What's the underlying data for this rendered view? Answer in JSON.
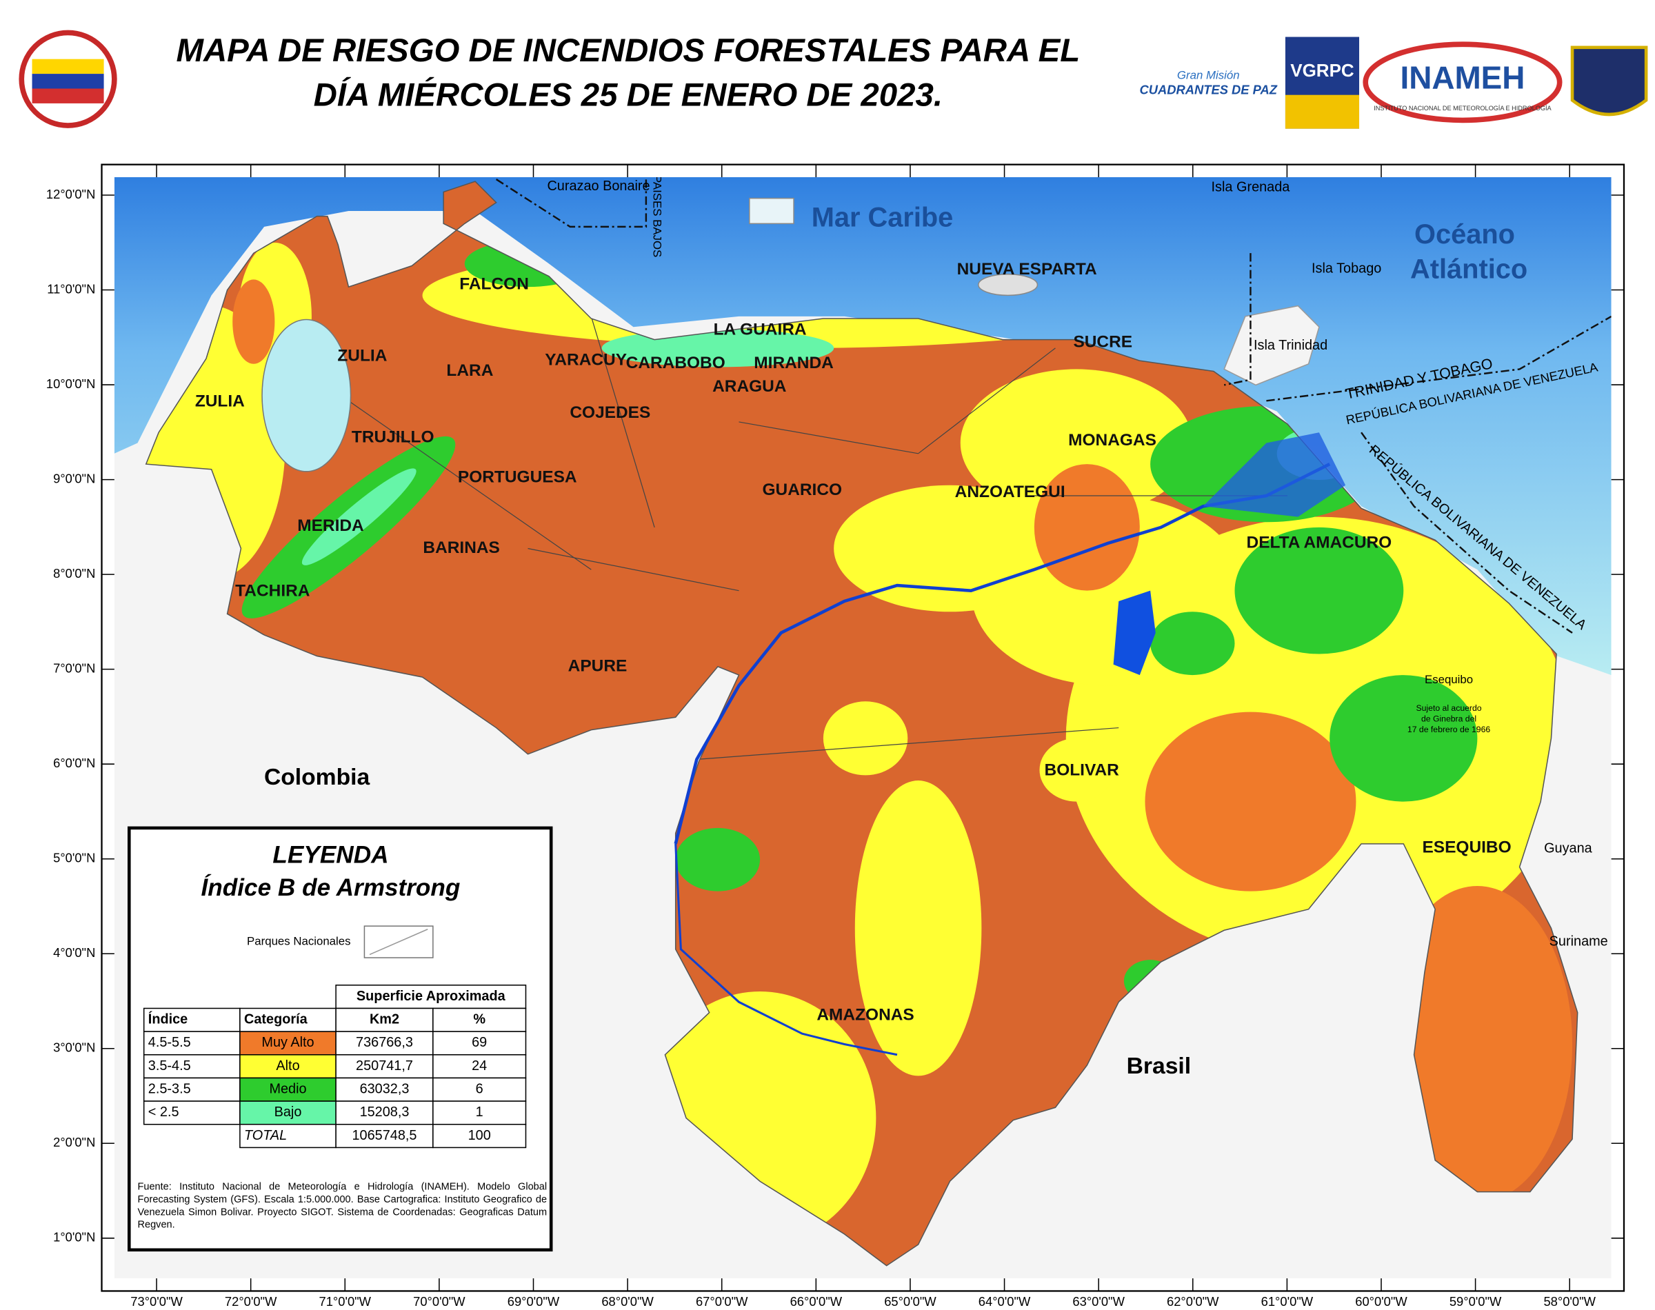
{
  "header": {
    "title_lines": [
      "MAPA DE RIESGO DE INCENDIOS FORESTALES PARA EL",
      "DÍA MIÉRCOLES 25 DE ENERO DE 2023."
    ],
    "logos": {
      "cuadrantes": [
        "Gran Misión",
        "CUADRANTES DE PAZ"
      ],
      "vgrpc": "VGRPC",
      "inameh": "INAMEH",
      "inameh_sub": "INSTITUTO NACIONAL DE METEOROLOGÍA E HIDROLOGÍA"
    }
  },
  "map": {
    "lat_labels": [
      "12°0'0\"N",
      "11°0'0\"N",
      "10°0'0\"N",
      "9°0'0\"N",
      "8°0'0\"N",
      "7°0'0\"N",
      "6°0'0\"N",
      "5°0'0\"N",
      "4°0'0\"N",
      "3°0'0\"N",
      "2°0'0\"N",
      "1°0'0\"N"
    ],
    "lon_labels": [
      "73°0'0\"W",
      "72°0'0\"W",
      "71°0'0\"W",
      "70°0'0\"W",
      "69°0'0\"W",
      "68°0'0\"W",
      "67°0'0\"W",
      "66°0'0\"W",
      "65°0'0\"W",
      "64°0'0\"W",
      "63°0'0\"W",
      "62°0'0\"W",
      "61°0'0\"W",
      "60°0'0\"W",
      "59°0'0\"W",
      "58°0'0\"W"
    ],
    "states": [
      "FALCON",
      "ZULIA",
      "ZULIA",
      "LARA",
      "YARACUY",
      "CARABOBO",
      "LA GUAIRA",
      "MIRANDA",
      "ARAGUA",
      "COJEDES",
      "TRUJILLO",
      "PORTUGUESA",
      "MERIDA",
      "BARINAS",
      "TACHIRA",
      "APURE",
      "GUARICO",
      "ANZOATEGUI",
      "NUEVA ESPARTA",
      "SUCRE",
      "MONAGAS",
      "DELTA AMACURO",
      "BOLIVAR",
      "AMAZONAS",
      "ESEQUIBO"
    ],
    "countries": [
      "Colombia",
      "Brasil"
    ],
    "seas": [
      "Mar Caribe",
      "Océano",
      "Atlántico"
    ],
    "minor_labels": [
      "Curazao Bonaire",
      "PAISES BAJOS",
      "Isla Grenada",
      "Isla Tobago",
      "Isla Trinidad",
      "TRINIDAD Y TOBAGO",
      "REPÚBLICA BOLIVARIANA DE VENEZUELA",
      "REPÚBLICA BOLIVARIANA DE VENEZUELA",
      "Esequibo",
      "Sujeto al acuerdo",
      "de Ginebra del",
      "17 de febrero de 1966",
      "Guyana",
      "Suriname"
    ]
  },
  "legend": {
    "title": "LEYENDA",
    "subtitle": "Índice B de Armstrong",
    "parks_label": "Parques Nacionales",
    "table": {
      "group_header": "Superficie Aproximada",
      "columns": [
        "Índice",
        "Categoría",
        "Km2",
        "%"
      ],
      "rows": [
        [
          "4.5-5.5",
          "Muy Alto",
          "736766,3",
          "69"
        ],
        [
          "3.5-4.5",
          "Alto",
          "250741,7",
          "24"
        ],
        [
          "2.5-3.5",
          "Medio",
          "63032,3",
          "6"
        ],
        [
          "< 2.5",
          "Bajo",
          "15208,3",
          "1"
        ]
      ],
      "category_colors": [
        "#f07a2a",
        "#ffff33",
        "#2ecc2e",
        "#66f5a8"
      ],
      "total": [
        "TOTAL",
        "1065748,5",
        "100"
      ]
    },
    "source": "Fuente: Instituto Nacional de Meteorología e Hidrología (INAMEH). Modelo Global Forecasting System (GFS). Escala 1:5.000.000. Base Cartografica: Instituto Geografico de Venezuela Simon Bolivar. Proyecto SIGOT. Sistema de Coordenadas: Geograficas Datum Regven."
  }
}
